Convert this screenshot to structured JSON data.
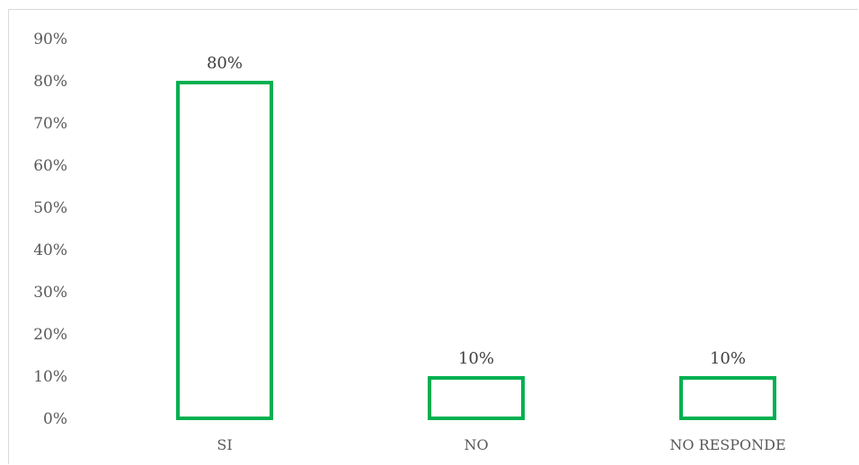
{
  "chart_data": {
    "type": "bar",
    "title": "",
    "xlabel": "",
    "ylabel": "",
    "categories": [
      "SI",
      "NO",
      "NO RESPONDE"
    ],
    "values": [
      80,
      10,
      10
    ],
    "data_labels": [
      "80%",
      "10%",
      "10%"
    ],
    "ylim": [
      0,
      90
    ],
    "y_ticks": [
      0,
      10,
      20,
      30,
      40,
      50,
      60,
      70,
      80,
      90
    ],
    "y_tick_labels": [
      "0%",
      "10%",
      "20%",
      "30%",
      "40%",
      "50%",
      "60%",
      "70%",
      "80%",
      "90%"
    ],
    "grid": false,
    "legend": "none",
    "bar_style": "outline",
    "bar_color": "#00b050"
  }
}
